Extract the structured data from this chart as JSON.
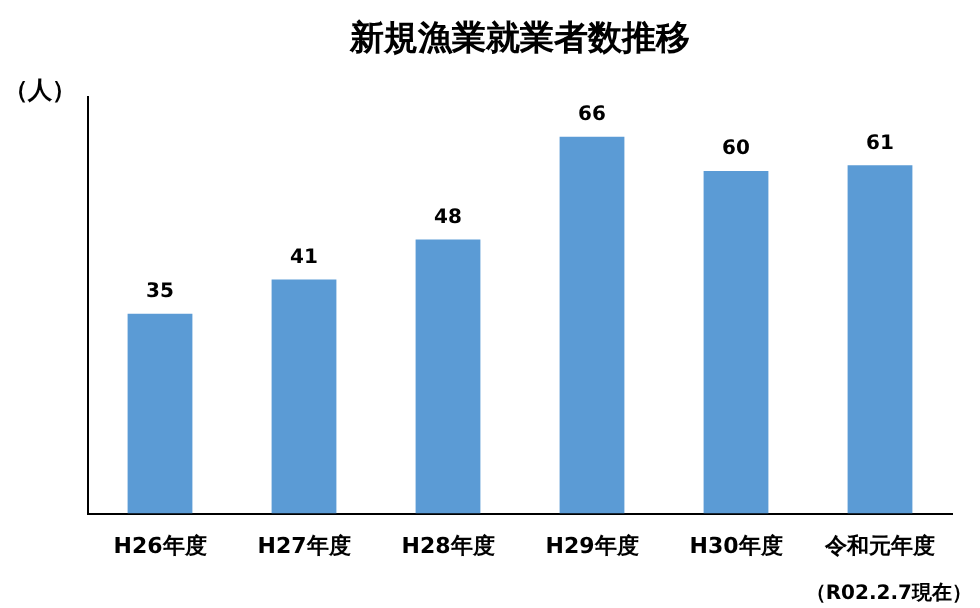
{
  "chart_data": {
    "type": "bar",
    "title": "新規漁業就業者数推移",
    "ylabel": "（人）",
    "categories": [
      "H26年度",
      "H27年度",
      "H28年度",
      "H29年度",
      "H30年度",
      "令和元年度"
    ],
    "values": [
      35,
      41,
      48,
      66,
      60,
      61
    ],
    "color": "#5b9bd5",
    "ylim": [
      0,
      73
    ],
    "tick_labels": "x",
    "data_labels": true,
    "grid": false,
    "legend": false,
    "annotations": [
      "（R02.2.7現在）"
    ]
  }
}
